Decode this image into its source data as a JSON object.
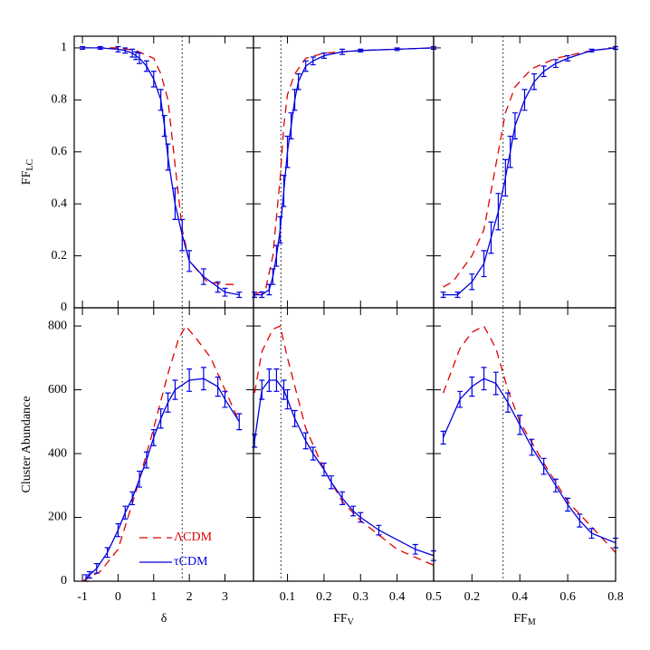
{
  "chart_data": [
    {
      "type": "line",
      "y_label": "FF",
      "y_label_sub": "LC",
      "xlim": [
        -1.23,
        3.8
      ],
      "ylim": [
        0,
        1.045
      ],
      "yticks": [
        0,
        0.2,
        0.4,
        0.6,
        0.8,
        1
      ],
      "vline": 1.8,
      "series": [
        {
          "color": "#e00000",
          "style": "dashed",
          "x": [
            -1,
            0,
            0.5,
            1.0,
            1.2,
            1.4,
            1.6,
            1.8,
            2.0,
            2.5,
            3.0,
            3.4
          ],
          "values": [
            1,
            1,
            0.99,
            0.96,
            0.9,
            0.8,
            0.55,
            0.3,
            0.18,
            0.1,
            0.09,
            0.09
          ]
        },
        {
          "color": "#0000e0",
          "style": "solid",
          "x": [
            -1,
            -0.5,
            0,
            0.2,
            0.4,
            0.5,
            0.6,
            0.8,
            1.0,
            1.2,
            1.3,
            1.4,
            1.6,
            1.8,
            2.0,
            2.4,
            2.8,
            3.0,
            3.4
          ],
          "values": [
            1,
            1,
            0.995,
            0.99,
            0.98,
            0.97,
            0.96,
            0.93,
            0.88,
            0.8,
            0.7,
            0.58,
            0.4,
            0.28,
            0.18,
            0.12,
            0.08,
            0.06,
            0.05
          ],
          "errors": [
            0.005,
            0.005,
            0.01,
            0.01,
            0.015,
            0.015,
            0.02,
            0.02,
            0.03,
            0.04,
            0.04,
            0.05,
            0.06,
            0.06,
            0.04,
            0.03,
            0.02,
            0.015,
            0.01
          ]
        }
      ]
    },
    {
      "type": "line",
      "xlim": [
        0.007,
        0.5
      ],
      "ylim": [
        0,
        1.045
      ],
      "vline": 0.082,
      "series": [
        {
          "color": "#e00000",
          "style": "dashed",
          "x": [
            0.01,
            0.04,
            0.06,
            0.07,
            0.08,
            0.09,
            0.1,
            0.12,
            0.15,
            0.2,
            0.3,
            0.5
          ],
          "values": [
            0.05,
            0.07,
            0.2,
            0.35,
            0.5,
            0.7,
            0.82,
            0.9,
            0.96,
            0.98,
            0.99,
            1
          ]
        },
        {
          "color": "#0000e0",
          "style": "solid",
          "x": [
            0.01,
            0.03,
            0.05,
            0.06,
            0.07,
            0.08,
            0.09,
            0.1,
            0.11,
            0.12,
            0.13,
            0.15,
            0.17,
            0.2,
            0.25,
            0.3,
            0.4,
            0.5
          ],
          "values": [
            0.05,
            0.05,
            0.07,
            0.12,
            0.2,
            0.3,
            0.45,
            0.6,
            0.7,
            0.8,
            0.87,
            0.93,
            0.95,
            0.97,
            0.985,
            0.99,
            0.995,
            1
          ],
          "errors": [
            0.01,
            0.01,
            0.02,
            0.03,
            0.04,
            0.05,
            0.06,
            0.06,
            0.05,
            0.04,
            0.03,
            0.02,
            0.015,
            0.01,
            0.01,
            0.005,
            0.005,
            0.005
          ]
        }
      ]
    },
    {
      "type": "line",
      "xlim": [
        0.04,
        0.8
      ],
      "ylim": [
        0,
        1.045
      ],
      "vline": 0.33,
      "series": [
        {
          "color": "#e00000",
          "style": "dashed",
          "x": [
            0.08,
            0.12,
            0.2,
            0.25,
            0.28,
            0.31,
            0.34,
            0.38,
            0.45,
            0.55,
            0.7,
            0.8
          ],
          "values": [
            0.08,
            0.1,
            0.2,
            0.3,
            0.45,
            0.6,
            0.75,
            0.85,
            0.92,
            0.96,
            0.99,
            1
          ]
        },
        {
          "color": "#0000e0",
          "style": "solid",
          "x": [
            0.08,
            0.14,
            0.2,
            0.25,
            0.28,
            0.31,
            0.34,
            0.36,
            0.38,
            0.42,
            0.46,
            0.5,
            0.55,
            0.6,
            0.7,
            0.8
          ],
          "values": [
            0.05,
            0.05,
            0.1,
            0.17,
            0.27,
            0.37,
            0.5,
            0.6,
            0.7,
            0.8,
            0.87,
            0.91,
            0.94,
            0.96,
            0.99,
            1
          ],
          "errors": [
            0.01,
            0.01,
            0.03,
            0.05,
            0.06,
            0.07,
            0.07,
            0.06,
            0.05,
            0.04,
            0.03,
            0.02,
            0.015,
            0.01,
            0.005,
            0.005
          ]
        }
      ]
    },
    {
      "type": "line",
      "x_label": "δ",
      "y_label": "Cluster Abundance",
      "xlim": [
        -1.23,
        3.8
      ],
      "ylim": [
        0,
        857
      ],
      "xticks": [
        -1,
        0,
        1,
        2,
        3
      ],
      "yticks": [
        0,
        200,
        400,
        600,
        800
      ],
      "vline": 1.8,
      "legend": "lower left",
      "series": [
        {
          "name": "ΛCDM",
          "color": "#e00000",
          "style": "dashed",
          "x": [
            -1,
            -0.5,
            0,
            0.5,
            1.0,
            1.4,
            1.7,
            1.9,
            2.2,
            2.6,
            3.0,
            3.4
          ],
          "values": [
            0,
            30,
            100,
            280,
            480,
            650,
            760,
            800,
            760,
            700,
            600,
            500
          ]
        },
        {
          "name": "τCDM",
          "color": "#0000e0",
          "style": "solid",
          "x": [
            -0.9,
            -0.8,
            -0.6,
            -0.3,
            0,
            0.2,
            0.4,
            0.6,
            0.8,
            1.0,
            1.2,
            1.4,
            1.6,
            2.0,
            2.4,
            2.8,
            3.0,
            3.4
          ],
          "values": [
            10,
            20,
            40,
            90,
            160,
            215,
            260,
            320,
            380,
            450,
            510,
            560,
            600,
            630,
            635,
            610,
            570,
            500
          ],
          "errors": [
            10,
            10,
            15,
            15,
            20,
            20,
            20,
            25,
            25,
            25,
            30,
            30,
            30,
            35,
            35,
            30,
            25,
            25
          ]
        }
      ]
    },
    {
      "type": "line",
      "x_label": "FF",
      "x_label_sub": "V",
      "xlim": [
        0.007,
        0.5
      ],
      "ylim": [
        0,
        857
      ],
      "xticks": [
        0.1,
        0.2,
        0.3,
        0.4,
        0.5
      ],
      "vline": 0.082,
      "series": [
        {
          "color": "#e00000",
          "style": "dashed",
          "x": [
            0.01,
            0.03,
            0.06,
            0.08,
            0.1,
            0.15,
            0.2,
            0.25,
            0.3,
            0.4,
            0.5
          ],
          "values": [
            590,
            720,
            790,
            800,
            700,
            480,
            350,
            250,
            190,
            100,
            50
          ]
        },
        {
          "color": "#0000e0",
          "style": "solid",
          "x": [
            0.01,
            0.03,
            0.05,
            0.07,
            0.09,
            0.1,
            0.12,
            0.15,
            0.17,
            0.2,
            0.22,
            0.25,
            0.28,
            0.3,
            0.35,
            0.45,
            0.5
          ],
          "values": [
            440,
            600,
            630,
            630,
            600,
            570,
            510,
            440,
            400,
            350,
            310,
            260,
            220,
            200,
            160,
            100,
            80
          ],
          "errors": [
            20,
            30,
            35,
            35,
            30,
            30,
            25,
            25,
            20,
            20,
            20,
            20,
            15,
            15,
            15,
            15,
            15
          ]
        }
      ]
    },
    {
      "type": "line",
      "x_label": "FF",
      "x_label_sub": "M",
      "xlim": [
        0.04,
        0.8
      ],
      "ylim": [
        0,
        857
      ],
      "xticks": [
        0.2,
        0.4,
        0.6,
        0.8
      ],
      "vline": 0.33,
      "series": [
        {
          "color": "#e00000",
          "style": "dashed",
          "x": [
            0.08,
            0.15,
            0.2,
            0.25,
            0.3,
            0.35,
            0.4,
            0.5,
            0.6,
            0.7,
            0.8
          ],
          "values": [
            590,
            730,
            780,
            800,
            730,
            600,
            500,
            370,
            250,
            170,
            90
          ]
        },
        {
          "color": "#0000e0",
          "style": "solid",
          "x": [
            0.08,
            0.15,
            0.2,
            0.25,
            0.3,
            0.35,
            0.4,
            0.45,
            0.5,
            0.55,
            0.6,
            0.65,
            0.7,
            0.8
          ],
          "values": [
            450,
            570,
            610,
            635,
            620,
            560,
            490,
            420,
            360,
            300,
            240,
            190,
            150,
            120
          ],
          "errors": [
            20,
            25,
            30,
            35,
            35,
            30,
            30,
            25,
            25,
            20,
            20,
            20,
            15,
            15
          ]
        }
      ]
    }
  ]
}
